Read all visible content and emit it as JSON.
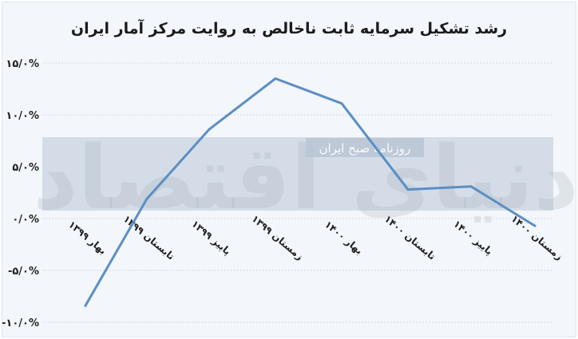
{
  "chart_data": {
    "type": "line",
    "title": "رشد تشکیل سرمایه ثابت ناخالص به روایت مرکز آمار ایران",
    "categories": [
      "بهار ۱۳۹۹",
      "تابستان ۱۳۹۹",
      "پاییز ۱۳۹۹",
      "زمستان ۱۳۹۹",
      "بهار ۱۴۰۰",
      "تابستان ۱۴۰۰",
      "پاییز ۱۴۰۰",
      "زمستان ۱۴۰۰"
    ],
    "series": [
      {
        "values": [
          -8.4,
          1.9,
          8.6,
          13.5,
          11.1,
          2.8,
          3.1,
          -0.7
        ]
      }
    ],
    "y_tick_labels": [
      "۱۵/۰%",
      "۱۰/۰%",
      "۵/۰%",
      "۰/۰%",
      "-۵/۰%",
      "-۱۰/۰%"
    ],
    "y_ticks": [
      15,
      10,
      5,
      0,
      -5,
      -10
    ],
    "ylim": [
      -10,
      15
    ],
    "grid": true,
    "line_color": "#5b8fc4",
    "watermark": {
      "logo_text": "دنیای اقتصاد",
      "strip_text": "روزنامه صبح ایران"
    }
  }
}
